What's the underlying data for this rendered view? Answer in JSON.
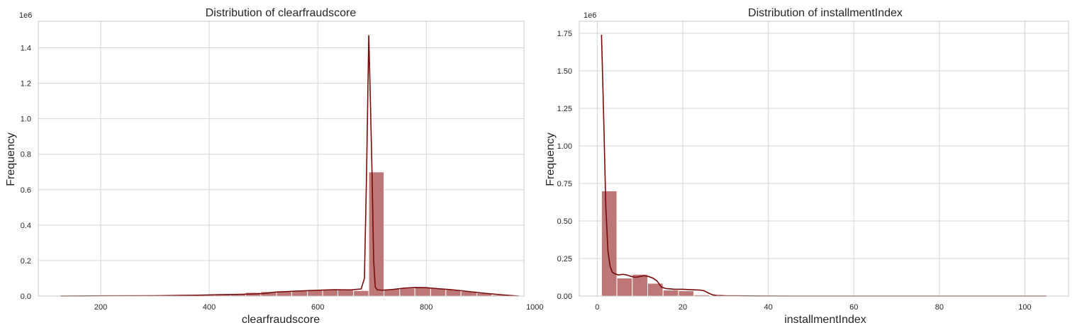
{
  "colors": {
    "bar": "#b97070",
    "line": "#7a0a0a",
    "grid": "#d6d6d6",
    "frame": "#c8c8c8",
    "text": "#262626",
    "background": "#ffffff"
  },
  "chart_data": [
    {
      "type": "bar",
      "title": "Distribution of clearfraudscore",
      "xlabel": "clearfraudscore",
      "ylabel": "Frequency",
      "y_offset_text": "1e6",
      "xlim": [
        85,
        980
      ],
      "ylim": [
        0,
        1.55
      ],
      "xticks": [
        200,
        400,
        600,
        800,
        1000
      ],
      "xtick_labels": [
        "200",
        "400",
        "600",
        "800",
        "1000"
      ],
      "yticks": [
        0,
        0.2,
        0.4,
        0.6,
        0.8,
        1.0,
        1.2,
        1.4
      ],
      "ytick_labels": [
        "0.0",
        "0.2",
        "0.4",
        "0.6",
        "0.8",
        "1.0",
        "1.2",
        "1.4"
      ],
      "grid": true,
      "bin_edges": [
        126,
        155,
        183,
        212,
        240,
        268,
        297,
        325,
        353,
        382,
        410,
        439,
        467,
        495,
        524,
        552,
        581,
        609,
        637,
        666,
        694,
        722,
        751,
        779,
        808,
        836,
        864,
        893,
        921,
        950
      ],
      "values": [
        0.0,
        0.0,
        0.0,
        0.0,
        0.0,
        0.0,
        0.001,
        0.002,
        0.004,
        0.006,
        0.009,
        0.013,
        0.02,
        0.025,
        0.029,
        0.031,
        0.034,
        0.038,
        0.038,
        0.031,
        0.7,
        0.04,
        0.045,
        0.048,
        0.043,
        0.036,
        0.027,
        0.017,
        0.007
      ],
      "kde_series": {
        "x": [
          126,
          300,
          380,
          420,
          460,
          500,
          520,
          560,
          600,
          630,
          660,
          680,
          686,
          690,
          694,
          697,
          700,
          703,
          706,
          710,
          720,
          740,
          760,
          780,
          800,
          820,
          850,
          880,
          910,
          940,
          970
        ],
        "y": [
          0.0,
          0.002,
          0.005,
          0.008,
          0.01,
          0.014,
          0.022,
          0.028,
          0.033,
          0.036,
          0.035,
          0.04,
          0.1,
          0.7,
          1.47,
          1.1,
          0.7,
          0.2,
          0.05,
          0.035,
          0.033,
          0.038,
          0.045,
          0.048,
          0.047,
          0.042,
          0.035,
          0.025,
          0.015,
          0.007,
          0.0
        ]
      }
    },
    {
      "type": "bar",
      "title": "Distribution of installmentIndex",
      "xlabel": "installmentIndex",
      "ylabel": "Frequency",
      "y_offset_text": "1e6",
      "xlim": [
        -4.2,
        110.2
      ],
      "ylim": [
        0,
        1.83
      ],
      "xticks": [
        0,
        20,
        40,
        60,
        80,
        100
      ],
      "xtick_labels": [
        "0",
        "20",
        "40",
        "60",
        "80",
        "100"
      ],
      "yticks": [
        0,
        0.25,
        0.5,
        0.75,
        1.0,
        1.25,
        1.5,
        1.75
      ],
      "ytick_labels": [
        "0.00",
        "0.25",
        "0.50",
        "0.75",
        "1.00",
        "1.25",
        "1.50",
        "1.75"
      ],
      "grid": true,
      "bin_edges": [
        1.0,
        4.6,
        8.2,
        11.8,
        15.4,
        19.0,
        22.6,
        26.2,
        29.8,
        33.4,
        37.0,
        40.6,
        44.2,
        47.8,
        51.4,
        55.0,
        58.6,
        62.2,
        65.8,
        69.4,
        73.0,
        76.6,
        80.2,
        83.8,
        87.4,
        91.0,
        94.6,
        98.2,
        101.8,
        105.4
      ],
      "values": [
        0.7,
        0.12,
        0.145,
        0.085,
        0.04,
        0.035,
        0.008,
        0.002,
        0.001,
        0.001,
        0.0,
        0.0,
        0.0,
        0.0,
        0.0,
        0.0,
        0.0,
        0.0,
        0.0,
        0.0,
        0.0,
        0.0,
        0.0,
        0.0,
        0.0,
        0.0,
        0.0,
        0.0,
        0.0
      ],
      "kde_series": {
        "x": [
          1.0,
          1.5,
          2.0,
          2.5,
          3.0,
          3.5,
          4.0,
          5.0,
          6.0,
          7.0,
          8.0,
          9.0,
          10.0,
          11.0,
          12.0,
          13.0,
          14.0,
          15.0,
          16.0,
          17.0,
          18.0,
          20.0,
          22.0,
          24.0,
          25.0,
          26.0,
          27.0,
          28.0,
          30.0,
          35.0,
          45.0,
          60.0,
          80.0,
          105.0
        ],
        "y": [
          1.74,
          1.2,
          0.6,
          0.3,
          0.2,
          0.16,
          0.15,
          0.14,
          0.145,
          0.14,
          0.13,
          0.125,
          0.13,
          0.135,
          0.13,
          0.12,
          0.1,
          0.06,
          0.05,
          0.048,
          0.045,
          0.045,
          0.042,
          0.04,
          0.035,
          0.02,
          0.008,
          0.004,
          0.002,
          0.001,
          0.0,
          0.0,
          0.0,
          0.0
        ]
      }
    }
  ]
}
